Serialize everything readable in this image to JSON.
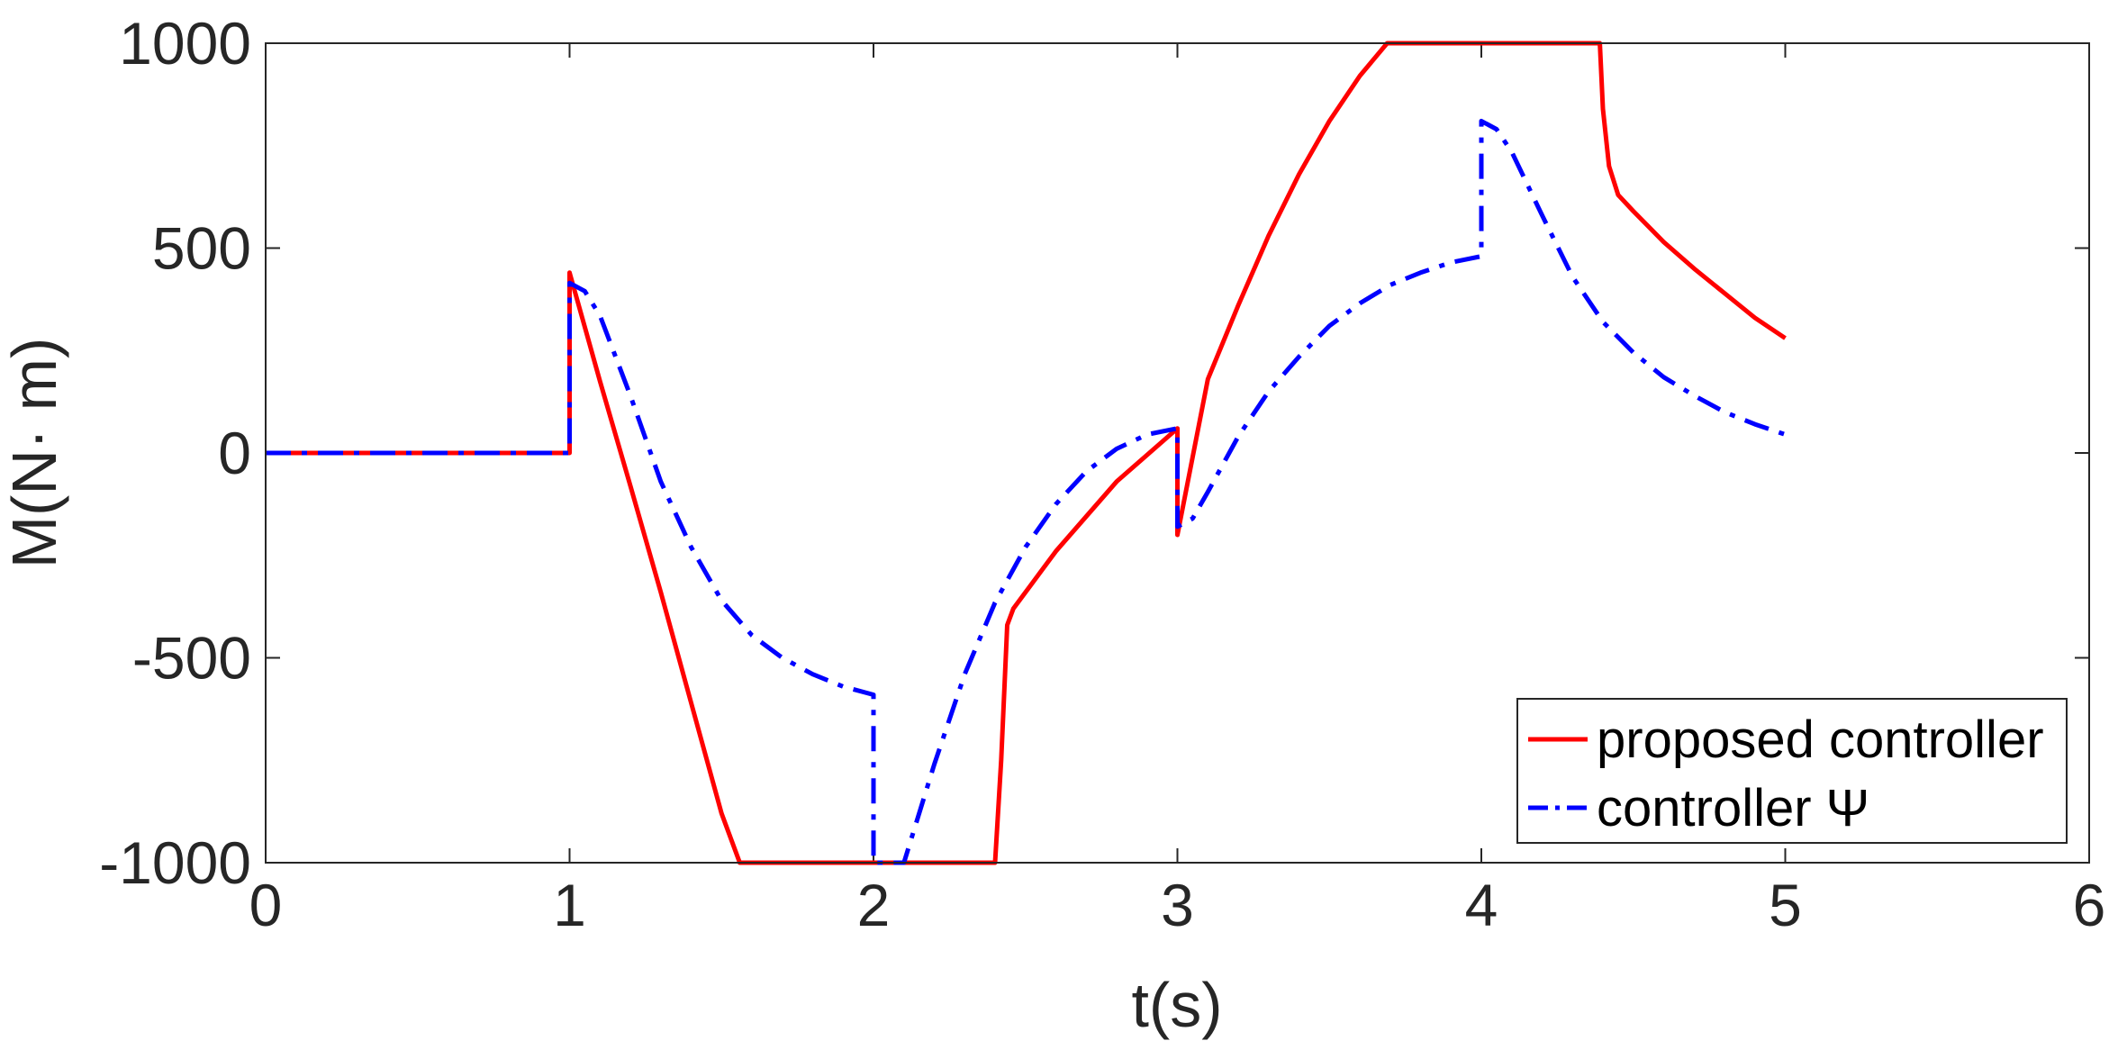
{
  "chart_data": {
    "type": "line",
    "title": "",
    "xlabel": "t(s)",
    "ylabel": "M(N· m)",
    "xlim": [
      0,
      6
    ],
    "ylim": [
      -1000,
      1000
    ],
    "xticks": [
      0,
      1,
      2,
      3,
      4,
      5,
      6
    ],
    "yticks": [
      -1000,
      -500,
      0,
      500,
      1000
    ],
    "xtick_labels": [
      "0",
      "1",
      "2",
      "3",
      "4",
      "5",
      "6"
    ],
    "ytick_labels": [
      "-1000",
      "-500",
      "0",
      "500",
      "1000"
    ],
    "grid": false,
    "box": true,
    "legend_position": "bottom-right",
    "series": [
      {
        "name": "proposed controller",
        "color": "#ff0000",
        "style": "solid",
        "points": [
          [
            0,
            0
          ],
          [
            1.0,
            0
          ],
          [
            1.0,
            440
          ],
          [
            1.1,
            175
          ],
          [
            1.2,
            -80
          ],
          [
            1.3,
            -340
          ],
          [
            1.4,
            -610
          ],
          [
            1.5,
            -880
          ],
          [
            1.56,
            -1000
          ],
          [
            2.4,
            -1000
          ],
          [
            2.42,
            -750
          ],
          [
            2.44,
            -420
          ],
          [
            2.46,
            -380
          ],
          [
            2.6,
            -240
          ],
          [
            2.8,
            -70
          ],
          [
            3.0,
            60
          ],
          [
            3.0,
            -200
          ],
          [
            3.1,
            180
          ],
          [
            3.2,
            360
          ],
          [
            3.3,
            530
          ],
          [
            3.4,
            680
          ],
          [
            3.5,
            810
          ],
          [
            3.6,
            920
          ],
          [
            3.69,
            1000
          ],
          [
            4.39,
            1000
          ],
          [
            4.4,
            840
          ],
          [
            4.42,
            700
          ],
          [
            4.45,
            630
          ],
          [
            4.5,
            590
          ],
          [
            4.6,
            515
          ],
          [
            4.7,
            450
          ],
          [
            4.8,
            390
          ],
          [
            4.9,
            330
          ],
          [
            5.0,
            280
          ]
        ]
      },
      {
        "name": "controller Ψ",
        "color": "#0000ff",
        "style": "dashdot",
        "points": [
          [
            0,
            0
          ],
          [
            1.0,
            0
          ],
          [
            1.0,
            415
          ],
          [
            1.05,
            395
          ],
          [
            1.1,
            335
          ],
          [
            1.2,
            140
          ],
          [
            1.3,
            -70
          ],
          [
            1.4,
            -230
          ],
          [
            1.5,
            -360
          ],
          [
            1.6,
            -445
          ],
          [
            1.7,
            -500
          ],
          [
            1.8,
            -540
          ],
          [
            1.9,
            -570
          ],
          [
            2.0,
            -590
          ],
          [
            2.0,
            -1000
          ],
          [
            2.1,
            -1000
          ],
          [
            2.2,
            -760
          ],
          [
            2.3,
            -540
          ],
          [
            2.4,
            -365
          ],
          [
            2.5,
            -230
          ],
          [
            2.6,
            -125
          ],
          [
            2.7,
            -45
          ],
          [
            2.8,
            10
          ],
          [
            2.9,
            45
          ],
          [
            3.0,
            60
          ],
          [
            3.0,
            -180
          ],
          [
            3.05,
            -160
          ],
          [
            3.1,
            -95
          ],
          [
            3.2,
            40
          ],
          [
            3.3,
            150
          ],
          [
            3.4,
            235
          ],
          [
            3.5,
            310
          ],
          [
            3.6,
            365
          ],
          [
            3.7,
            410
          ],
          [
            3.8,
            440
          ],
          [
            3.9,
            465
          ],
          [
            4.0,
            480
          ],
          [
            4.0,
            810
          ],
          [
            4.05,
            790
          ],
          [
            4.1,
            735
          ],
          [
            4.2,
            580
          ],
          [
            4.3,
            430
          ],
          [
            4.4,
            320
          ],
          [
            4.5,
            245
          ],
          [
            4.6,
            185
          ],
          [
            4.7,
            140
          ],
          [
            4.8,
            100
          ],
          [
            4.9,
            70
          ],
          [
            5.0,
            45
          ]
        ]
      }
    ]
  }
}
